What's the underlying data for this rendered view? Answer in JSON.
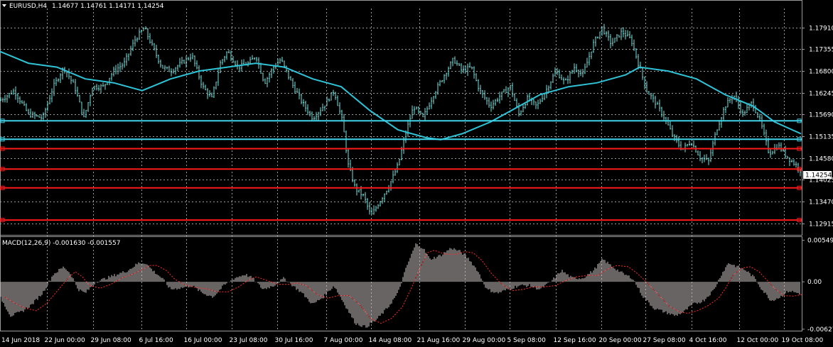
{
  "header": {
    "title": "EURUSD,H4",
    "ohlc": "1.14677 1.14761 1.14171 1.14254",
    "macd_label": "MACD(12,26,9) -0.001630 -0.001557"
  },
  "colors": {
    "background": "#000000",
    "grid": "#9a9a9a",
    "candle": "#6fe3df",
    "ma": "#2ec3d6",
    "support_cyan": "#3fd2e6",
    "support_red": "#ff1a1a",
    "macd_hist": "#cfc7c7",
    "macd_signal": "#ff2b2b",
    "text": "#ffffff"
  },
  "current_price_label": "1.14254",
  "chart_data": [
    {
      "type": "candlestick",
      "symbol": "EURUSD",
      "timeframe": "H4",
      "grid": true,
      "ylim": [
        1.1264,
        1.1834
      ],
      "y_ticks": [
        "1.17910",
        "1.17355",
        "1.16800",
        "1.16245",
        "1.15690",
        "1.15135",
        "1.14580",
        "1.14025",
        "1.13470",
        "1.12915"
      ],
      "x_ticks": [
        "14 Jun 2018",
        "22 Jun 00:00",
        "29 Jun 08:00",
        "6 Jul 16:00",
        "16 Jul 00:00",
        "23 Jul 08:00",
        "30 Jul 16:00",
        "7 Aug 00:00",
        "14 Aug 08:00",
        "21 Aug 16:00",
        "29 Aug 00:00",
        "5 Sep 08:00",
        "12 Sep 16:00",
        "20 Sep 00:00",
        "27 Sep 08:00",
        "4 Oct 16:00",
        "12 Oct 00:00",
        "19 Oct 08:00"
      ],
      "close_path": [
        [
          0,
          1.1605
        ],
        [
          20,
          1.163
        ],
        [
          40,
          1.157
        ],
        [
          60,
          1.156
        ],
        [
          75,
          1.164
        ],
        [
          90,
          1.169
        ],
        [
          105,
          1.164
        ],
        [
          118,
          1.156
        ],
        [
          130,
          1.164
        ],
        [
          145,
          1.164
        ],
        [
          160,
          1.168
        ],
        [
          175,
          1.17
        ],
        [
          190,
          1.176
        ],
        [
          203,
          1.179
        ],
        [
          215,
          1.174
        ],
        [
          228,
          1.169
        ],
        [
          240,
          1.168
        ],
        [
          255,
          1.17
        ],
        [
          270,
          1.172
        ],
        [
          285,
          1.164
        ],
        [
          298,
          1.161
        ],
        [
          310,
          1.17
        ],
        [
          320,
          1.173
        ],
        [
          335,
          1.169
        ],
        [
          350,
          1.17
        ],
        [
          360,
          1.172
        ],
        [
          372,
          1.165
        ],
        [
          385,
          1.169
        ],
        [
          395,
          1.171
        ],
        [
          410,
          1.165
        ],
        [
          425,
          1.16
        ],
        [
          440,
          1.156
        ],
        [
          455,
          1.159
        ],
        [
          470,
          1.163
        ],
        [
          482,
          1.155
        ],
        [
          490,
          1.144
        ],
        [
          500,
          1.138
        ],
        [
          512,
          1.136
        ],
        [
          522,
          1.131
        ],
        [
          535,
          1.135
        ],
        [
          548,
          1.139
        ],
        [
          560,
          1.144
        ],
        [
          572,
          1.153
        ],
        [
          582,
          1.159
        ],
        [
          595,
          1.156
        ],
        [
          610,
          1.162
        ],
        [
          625,
          1.167
        ],
        [
          638,
          1.171
        ],
        [
          650,
          1.168
        ],
        [
          663,
          1.169
        ],
        [
          675,
          1.163
        ],
        [
          690,
          1.159
        ],
        [
          705,
          1.162
        ],
        [
          718,
          1.164
        ],
        [
          730,
          1.157
        ],
        [
          742,
          1.161
        ],
        [
          755,
          1.159
        ],
        [
          768,
          1.163
        ],
        [
          782,
          1.168
        ],
        [
          795,
          1.165
        ],
        [
          808,
          1.169
        ],
        [
          820,
          1.167
        ],
        [
          835,
          1.175
        ],
        [
          847,
          1.179
        ],
        [
          860,
          1.175
        ],
        [
          875,
          1.178
        ],
        [
          888,
          1.176
        ],
        [
          898,
          1.17
        ],
        [
          910,
          1.163
        ],
        [
          922,
          1.16
        ],
        [
          935,
          1.156
        ],
        [
          948,
          1.151
        ],
        [
          960,
          1.148
        ],
        [
          972,
          1.15
        ],
        [
          985,
          1.146
        ],
        [
          997,
          1.145
        ],
        [
          1008,
          1.153
        ],
        [
          1020,
          1.159
        ],
        [
          1032,
          1.162
        ],
        [
          1045,
          1.157
        ],
        [
          1058,
          1.16
        ],
        [
          1070,
          1.155
        ],
        [
          1082,
          1.147
        ],
        [
          1095,
          1.149
        ],
        [
          1108,
          1.146
        ],
        [
          1120,
          1.144
        ],
        [
          1127,
          1.1425
        ]
      ],
      "moving_average": [
        [
          0,
          1.173
        ],
        [
          40,
          1.17
        ],
        [
          80,
          1.169
        ],
        [
          120,
          1.166
        ],
        [
          160,
          1.165
        ],
        [
          200,
          1.163
        ],
        [
          240,
          1.166
        ],
        [
          280,
          1.168
        ],
        [
          320,
          1.169
        ],
        [
          360,
          1.17
        ],
        [
          400,
          1.169
        ],
        [
          440,
          1.166
        ],
        [
          480,
          1.164
        ],
        [
          520,
          1.158
        ],
        [
          560,
          1.153
        ],
        [
          600,
          1.151
        ],
        [
          620,
          1.1505
        ],
        [
          650,
          1.152
        ],
        [
          690,
          1.155
        ],
        [
          720,
          1.158
        ],
        [
          760,
          1.162
        ],
        [
          800,
          1.164
        ],
        [
          840,
          1.165
        ],
        [
          880,
          1.167
        ],
        [
          900,
          1.169
        ],
        [
          940,
          1.168
        ],
        [
          980,
          1.166
        ],
        [
          1020,
          1.162
        ],
        [
          1060,
          1.159
        ],
        [
          1090,
          1.155
        ],
        [
          1127,
          1.152
        ]
      ],
      "horizontal_levels": [
        {
          "name": "cyan-level-1",
          "price": 1.1553,
          "color": "#3fd2e6"
        },
        {
          "name": "cyan-level-2",
          "price": 1.1506,
          "color": "#3fd2e6"
        },
        {
          "name": "red-level-1",
          "price": 1.1482,
          "color": "#ff1a1a"
        },
        {
          "name": "red-level-2",
          "price": 1.143,
          "color": "#ff1a1a"
        },
        {
          "name": "red-level-3",
          "price": 1.1382,
          "color": "#ff1a1a"
        },
        {
          "name": "red-level-4",
          "price": 1.13,
          "color": "#ff1a1a"
        }
      ]
    },
    {
      "type": "bar",
      "name": "MACD(12,26,9)",
      "ylim": [
        -0.00638,
        0.00575
      ],
      "y_ticks": [
        "0.005499",
        "0.00",
        "-0.006277"
      ],
      "histogram": [
        [
          0,
          -0.002
        ],
        [
          15,
          -0.0045
        ],
        [
          30,
          -0.004
        ],
        [
          45,
          -0.003
        ],
        [
          60,
          -0.0015
        ],
        [
          75,
          0.001
        ],
        [
          90,
          0.002
        ],
        [
          100,
          0.001
        ],
        [
          110,
          -0.001
        ],
        [
          120,
          -0.0015
        ],
        [
          135,
          0.0
        ],
        [
          150,
          0.0005
        ],
        [
          165,
          0.001
        ],
        [
          180,
          0.0015
        ],
        [
          195,
          0.0025
        ],
        [
          205,
          0.0025
        ],
        [
          215,
          0.0015
        ],
        [
          228,
          0.0005
        ],
        [
          240,
          -0.001
        ],
        [
          255,
          -0.0008
        ],
        [
          270,
          -0.0005
        ],
        [
          285,
          -0.0015
        ],
        [
          300,
          -0.002
        ],
        [
          315,
          -0.0005
        ],
        [
          330,
          0.0005
        ],
        [
          345,
          0.001
        ],
        [
          355,
          0.0005
        ],
        [
          370,
          -0.001
        ],
        [
          385,
          -0.0005
        ],
        [
          400,
          0.0005
        ],
        [
          412,
          -0.0005
        ],
        [
          425,
          -0.0015
        ],
        [
          440,
          -0.003
        ],
        [
          455,
          -0.002
        ],
        [
          470,
          -0.0005
        ],
        [
          485,
          -0.003
        ],
        [
          500,
          -0.0055
        ],
        [
          515,
          -0.006
        ],
        [
          530,
          -0.005
        ],
        [
          545,
          -0.0035
        ],
        [
          560,
          -0.0015
        ],
        [
          572,
          0.002
        ],
        [
          585,
          0.005
        ],
        [
          595,
          0.0045
        ],
        [
          605,
          0.003
        ],
        [
          620,
          0.0035
        ],
        [
          635,
          0.0045
        ],
        [
          648,
          0.004
        ],
        [
          660,
          0.003
        ],
        [
          672,
          0.0015
        ],
        [
          685,
          -0.001
        ],
        [
          700,
          -0.0015
        ],
        [
          715,
          -0.001
        ],
        [
          730,
          -0.0005
        ],
        [
          745,
          -0.0005
        ],
        [
          760,
          -0.001
        ],
        [
          775,
          0.0
        ],
        [
          790,
          0.0015
        ],
        [
          805,
          0.0005
        ],
        [
          820,
          0.0005
        ],
        [
          835,
          0.0015
        ],
        [
          848,
          0.003
        ],
        [
          862,
          0.002
        ],
        [
          878,
          0.001
        ],
        [
          890,
          0.0005
        ],
        [
          905,
          -0.002
        ],
        [
          920,
          -0.0035
        ],
        [
          935,
          -0.004
        ],
        [
          950,
          -0.0045
        ],
        [
          962,
          -0.004
        ],
        [
          975,
          -0.003
        ],
        [
          990,
          -0.0025
        ],
        [
          1005,
          -0.001
        ],
        [
          1015,
          0.001
        ],
        [
          1025,
          0.0025
        ],
        [
          1038,
          0.002
        ],
        [
          1050,
          0.0015
        ],
        [
          1062,
          0.0005
        ],
        [
          1072,
          -0.001
        ],
        [
          1085,
          -0.0025
        ],
        [
          1098,
          -0.002
        ],
        [
          1110,
          -0.0012
        ],
        [
          1127,
          -0.0016
        ]
      ]
    }
  ]
}
